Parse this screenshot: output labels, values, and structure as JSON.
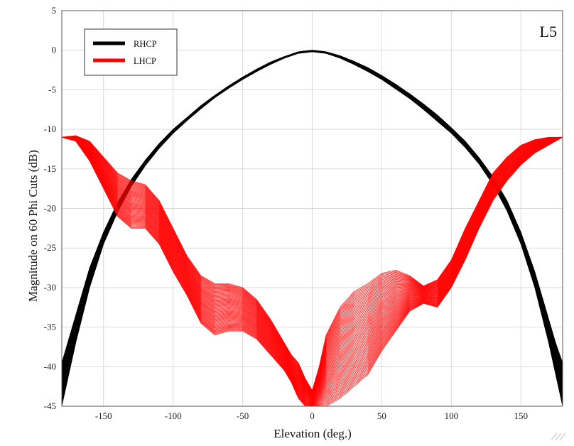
{
  "chart_data": {
    "type": "line",
    "xlabel": "Elevation (deg.)",
    "ylabel": "Magnitude on 60 Phi Cuts (dB)",
    "annotation": "L5",
    "xlim": [
      -180,
      180
    ],
    "ylim": [
      -45,
      5
    ],
    "xticks": [
      -150,
      -100,
      -50,
      0,
      50,
      100,
      150
    ],
    "yticks": [
      5,
      0,
      -5,
      -10,
      -15,
      -20,
      -25,
      -30,
      -35,
      -40,
      -45
    ],
    "grid": true,
    "legend_placement": "top-left",
    "cuts_per_series": 60,
    "series": [
      {
        "name": "RHCP",
        "color": "#000000",
        "x": [
          -180,
          -175,
          -170,
          -160,
          -150,
          -140,
          -130,
          -120,
          -110,
          -100,
          -90,
          -80,
          -70,
          -60,
          -50,
          -40,
          -30,
          -20,
          -10,
          0,
          10,
          20,
          30,
          40,
          50,
          60,
          70,
          80,
          90,
          100,
          110,
          120,
          130,
          140,
          150,
          160,
          170,
          175,
          180
        ],
        "y_upper": [
          -39.5,
          -36.5,
          -33.5,
          -27.5,
          -23.0,
          -19.3,
          -16.3,
          -13.9,
          -11.8,
          -10.0,
          -8.5,
          -7.0,
          -5.7,
          -4.5,
          -3.4,
          -2.4,
          -1.5,
          -0.8,
          -0.2,
          0,
          -0.2,
          -0.7,
          -1.4,
          -2.2,
          -3.2,
          -4.3,
          -5.5,
          -6.8,
          -8.2,
          -9.8,
          -11.5,
          -13.6,
          -16.0,
          -19.0,
          -23.0,
          -28.0,
          -34.0,
          -37.0,
          -39.5
        ],
        "y_lower": [
          -45.0,
          -41.0,
          -37.0,
          -30.0,
          -24.5,
          -20.5,
          -17.2,
          -14.6,
          -12.4,
          -10.5,
          -8.9,
          -7.4,
          -6.0,
          -4.8,
          -3.7,
          -2.7,
          -1.8,
          -1.0,
          -0.4,
          -0.2,
          -0.4,
          -1.0,
          -1.8,
          -2.7,
          -3.7,
          -4.9,
          -6.1,
          -7.5,
          -9.0,
          -10.5,
          -12.3,
          -14.4,
          -17.0,
          -20.3,
          -24.5,
          -30.0,
          -37.0,
          -41.0,
          -45.0
        ]
      },
      {
        "name": "LHCP",
        "color": "#ff0000",
        "x": [
          -180,
          -170,
          -160,
          -150,
          -140,
          -130,
          -120,
          -110,
          -100,
          -90,
          -80,
          -70,
          -60,
          -50,
          -40,
          -30,
          -20,
          -15,
          -10,
          -5,
          0,
          5,
          10,
          20,
          30,
          40,
          50,
          60,
          70,
          80,
          90,
          100,
          110,
          120,
          130,
          140,
          150,
          160,
          170,
          180
        ],
        "y_upper": [
          -11.0,
          -10.8,
          -11.5,
          -13.5,
          -15.5,
          -16.5,
          -17.0,
          -19.0,
          -22.5,
          -26.0,
          -28.5,
          -29.5,
          -29.5,
          -30.0,
          -31.5,
          -34.0,
          -37.0,
          -38.5,
          -39.5,
          -41.5,
          -43.0,
          -40.0,
          -36.0,
          -32.5,
          -30.5,
          -29.5,
          -28.2,
          -27.8,
          -28.5,
          -29.8,
          -29.0,
          -26.5,
          -22.5,
          -19.0,
          -15.5,
          -13.5,
          -12.0,
          -11.3,
          -11.0,
          -11.0
        ],
        "y_lower": [
          -11.0,
          -11.5,
          -14.0,
          -17.5,
          -21.0,
          -22.5,
          -22.5,
          -24.5,
          -28.0,
          -31.0,
          -34.5,
          -36.0,
          -35.5,
          -35.5,
          -36.5,
          -38.5,
          -40.5,
          -42.0,
          -44.0,
          -45.0,
          -45.0,
          -45.0,
          -45.0,
          -44.0,
          -42.5,
          -41.0,
          -38.0,
          -35.5,
          -33.0,
          -32.0,
          -32.5,
          -30.0,
          -26.5,
          -22.5,
          -19.0,
          -16.5,
          -14.5,
          -13.0,
          -12.0,
          -11.0
        ]
      }
    ]
  },
  "icons": {
    "watermark": "watermark-icon"
  }
}
